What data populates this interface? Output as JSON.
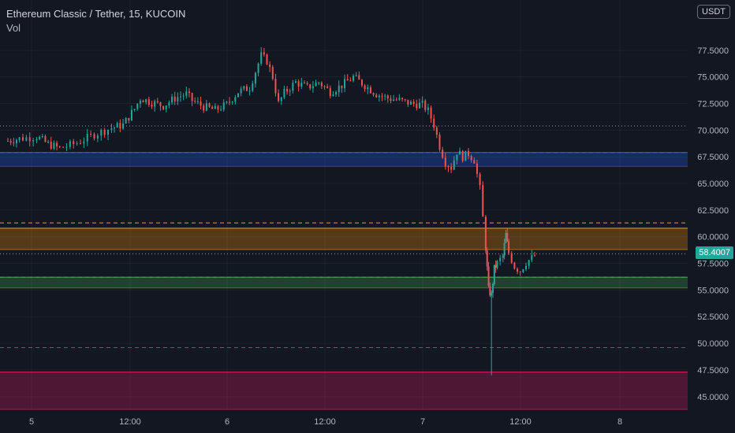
{
  "header": {
    "title": "Ethereum Classic / Tether, 15, KUCOIN",
    "volume_label": "Vol",
    "currency_button": "USDT"
  },
  "colors": {
    "background": "#131722",
    "grid": "#1e222d",
    "up": "#26a69a",
    "down": "#ef5350",
    "zone_blue": "#2962ff",
    "zone_orange": "#ff9800",
    "zone_green": "#4caf50",
    "zone_red": "#e91e63",
    "text": "#b2b5be"
  },
  "current_price": "58.4007",
  "chart_data": {
    "type": "candlestick",
    "title": "Ethereum Classic / Tether, 15, KUCOIN",
    "xlabel": "",
    "ylabel": "",
    "ylim": [
      43.8,
      80.0
    ],
    "x_ticks": [
      "5",
      "12:00",
      "6",
      "12:00",
      "7",
      "12:00",
      "8"
    ],
    "y_ticks": [
      "45.0000",
      "47.5000",
      "50.0000",
      "52.5000",
      "55.0000",
      "57.5000",
      "60.0000",
      "62.5000",
      "65.0000",
      "67.5000",
      "70.0000",
      "72.5000",
      "75.0000",
      "77.5000"
    ],
    "grid": true,
    "price_path": [
      [
        0,
        69.0
      ],
      [
        0.02,
        69.2
      ],
      [
        0.05,
        69.4
      ],
      [
        0.07,
        68.7
      ],
      [
        0.09,
        68.3
      ],
      [
        0.12,
        68.8
      ],
      [
        0.15,
        69.6
      ],
      [
        0.18,
        70.2
      ],
      [
        0.2,
        70.5
      ],
      [
        0.22,
        72.0
      ],
      [
        0.23,
        73.0
      ],
      [
        0.25,
        72.6
      ],
      [
        0.27,
        72.3
      ],
      [
        0.29,
        73.0
      ],
      [
        0.31,
        73.4
      ],
      [
        0.32,
        72.8
      ],
      [
        0.34,
        72.2
      ],
      [
        0.36,
        71.9
      ],
      [
        0.38,
        72.4
      ],
      [
        0.4,
        73.6
      ],
      [
        0.42,
        74.0
      ],
      [
        0.43,
        75.5
      ],
      [
        0.44,
        77.0
      ],
      [
        0.45,
        76.5
      ],
      [
        0.46,
        75.0
      ],
      [
        0.47,
        72.5
      ],
      [
        0.48,
        73.5
      ],
      [
        0.5,
        74.5
      ],
      [
        0.52,
        74.0
      ],
      [
        0.54,
        74.5
      ],
      [
        0.56,
        73.6
      ],
      [
        0.58,
        74.2
      ],
      [
        0.6,
        75.0
      ],
      [
        0.62,
        74.2
      ],
      [
        0.64,
        73.4
      ],
      [
        0.66,
        73.0
      ],
      [
        0.68,
        72.8
      ],
      [
        0.7,
        72.5
      ],
      [
        0.72,
        72.4
      ],
      [
        0.73,
        71.8
      ],
      [
        0.74,
        70.5
      ],
      [
        0.75,
        68.5
      ],
      [
        0.76,
        67.0
      ],
      [
        0.77,
        66.5
      ],
      [
        0.78,
        68.0
      ],
      [
        0.79,
        67.5
      ],
      [
        0.8,
        67.8
      ],
      [
        0.81,
        67.2
      ],
      [
        0.82,
        64.5
      ],
      [
        0.83,
        59.0
      ],
      [
        0.835,
        55.0
      ],
      [
        0.84,
        54.5
      ],
      [
        0.845,
        57.0
      ],
      [
        0.85,
        57.5
      ],
      [
        0.86,
        58.2
      ],
      [
        0.865,
        60.2
      ],
      [
        0.87,
        58.5
      ],
      [
        0.88,
        57.2
      ],
      [
        0.89,
        56.8
      ],
      [
        0.9,
        57.6
      ],
      [
        0.91,
        58.0
      ],
      [
        0.92,
        58.4
      ]
    ],
    "spike_low": 47.0,
    "zones": [
      {
        "color": "zone_blue",
        "from": 66.6,
        "to": 67.9,
        "dashed_at": 67.9
      },
      {
        "color": "zone_orange",
        "from": 58.8,
        "to": 60.8,
        "dashed_at": 61.3
      },
      {
        "color": "zone_green",
        "from": 55.2,
        "to": 56.2,
        "dashed_at": 56.2
      },
      {
        "color": "zone_red",
        "from": 43.8,
        "to": 47.3,
        "dashed_at": 49.6
      }
    ],
    "dotted_lines": [
      70.4,
      58.4
    ]
  }
}
